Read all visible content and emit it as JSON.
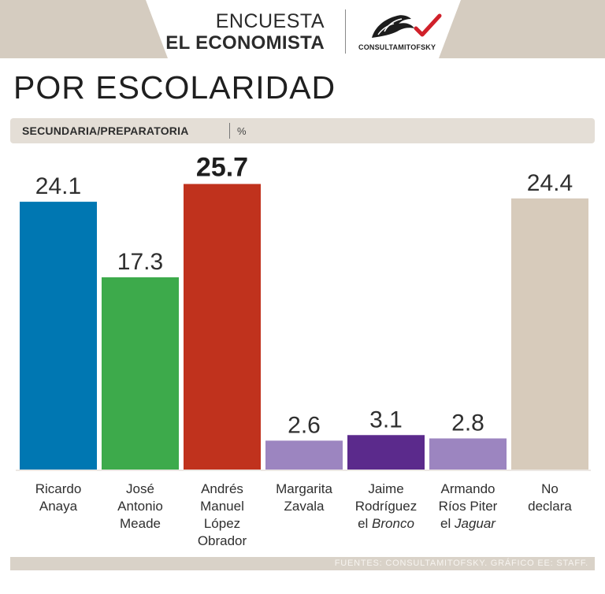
{
  "header": {
    "line1": "ENCUESTA",
    "line2": "EL ECONOMISTA",
    "logo_text": "CONSULTAMITOFSKY"
  },
  "title": "POR ESCOLARIDAD",
  "subtitle": {
    "label": "SECUNDARIA/PREPARATORIA",
    "unit": "%"
  },
  "footer": {
    "source": "FUENTES: CONSULTAMITOFSKY.  GRÁFICO EE: STAFF."
  },
  "colors": {
    "band": "#d5ccc0",
    "anaya": "#0077b2",
    "meade": "#3daa4b",
    "amlo": "#c0321d",
    "zavala": "#9c85c0",
    "bronco": "#5b2a8c",
    "jaguar": "#9c85c0",
    "no_declara": "#d7cbbb"
  },
  "chart_data": {
    "type": "bar",
    "title": "POR ESCOLARIDAD",
    "subtitle": "SECUNDARIA/PREPARATORIA",
    "unit": "%",
    "ylim": [
      0,
      26
    ],
    "grid": false,
    "categories": [
      [
        "Ricardo",
        "Anaya"
      ],
      [
        "José",
        "Antonio",
        "Meade"
      ],
      [
        "Andrés",
        "Manuel",
        "López",
        "Obrador"
      ],
      [
        "Margarita",
        "Zavala"
      ],
      [
        "Jaime",
        "Rodríguez",
        "el |Bronco"
      ],
      [
        "Armando",
        "Ríos Piter",
        "el |Jaguar"
      ],
      [
        "No",
        "declara"
      ]
    ],
    "values": [
      24.1,
      17.3,
      25.7,
      2.6,
      3.1,
      2.8,
      24.4
    ],
    "value_labels": [
      "24.1",
      "17.3",
      "25.7",
      "2.6",
      "3.1",
      "2.8",
      "24.4"
    ],
    "bar_colors": [
      "#0077b2",
      "#3daa4b",
      "#c0321d",
      "#9c85c0",
      "#5b2a8c",
      "#9c85c0",
      "#d7cbbb"
    ],
    "highlight_index": 2
  }
}
